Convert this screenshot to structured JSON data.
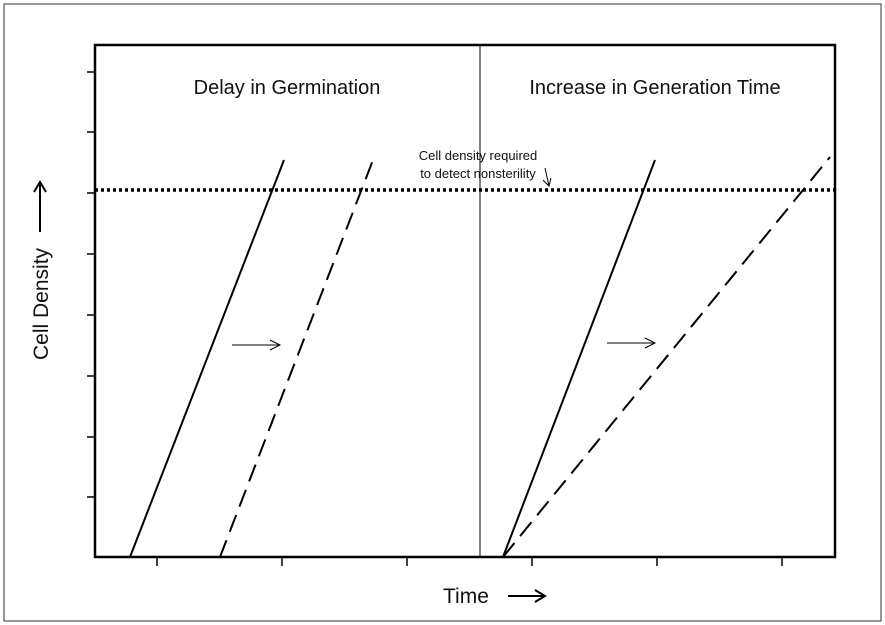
{
  "panels": [
    {
      "title": "Delay in Germination"
    },
    {
      "title": "Increase in Generation Time"
    }
  ],
  "annotation": {
    "lines": [
      "Cell density required",
      "to detect nonsterility"
    ]
  },
  "axes": {
    "y_label": "Cell Density",
    "x_label": "Time"
  }
}
